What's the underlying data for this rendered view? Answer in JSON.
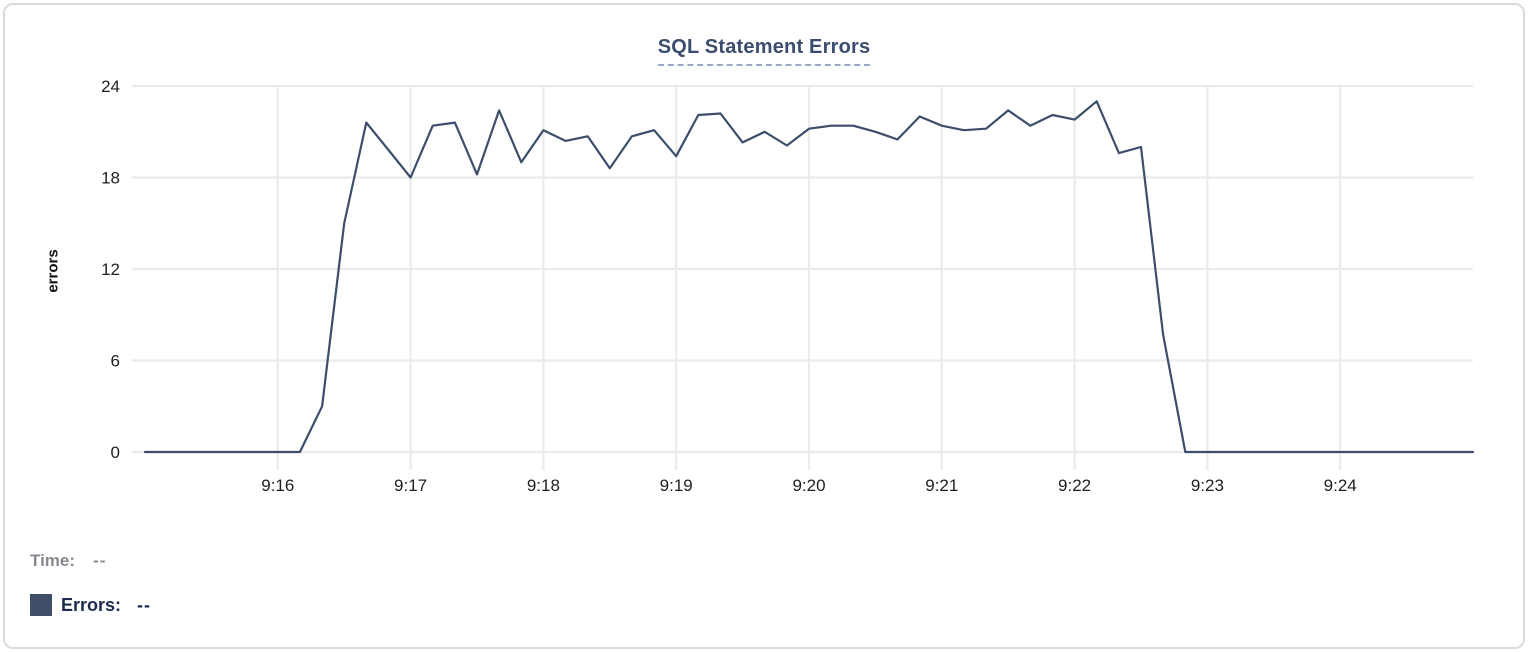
{
  "chart_data": {
    "type": "line",
    "title": "SQL Statement Errors",
    "xlabel": "",
    "ylabel": "errors",
    "ylim": [
      0,
      24
    ],
    "y_ticks": [
      0,
      6,
      12,
      18,
      24
    ],
    "x_ticks": [
      "9:16",
      "9:17",
      "9:18",
      "9:19",
      "9:20",
      "9:21",
      "9:22",
      "9:23",
      "9:24"
    ],
    "x_start_time": "9:15:00",
    "x_end_time": "9:25:00",
    "sample_interval_seconds": 10,
    "grid": true,
    "legend_position": "bottom-left",
    "series": [
      {
        "name": "Errors",
        "color": "#3d4e6c",
        "values": [
          0,
          0,
          0,
          0,
          0,
          0,
          0,
          0,
          3,
          15,
          21.6,
          19.8,
          18,
          21.4,
          21.6,
          18.2,
          22.4,
          19,
          21.1,
          20.4,
          20.7,
          18.6,
          20.7,
          21.1,
          19.4,
          22.1,
          22.2,
          20.3,
          21,
          20.1,
          21.2,
          21.4,
          21.4,
          21,
          20.5,
          22,
          21.4,
          21.1,
          21.2,
          22.4,
          21.4,
          22.1,
          21.8,
          23,
          19.6,
          20,
          7.7,
          0,
          0,
          0,
          0,
          0,
          0,
          0,
          0,
          0,
          0,
          0,
          0,
          0,
          0
        ]
      }
    ]
  },
  "readout": {
    "time_label": "Time:",
    "time_value": "--",
    "errors_label": "Errors:",
    "errors_value": "--"
  },
  "colors": {
    "line": "#3d4e6c",
    "grid": "#ebebeb",
    "tick_text": "#1f1f1f",
    "title": "#3b4d6e",
    "title_underline": "#9aa8c2",
    "time_label": "#85898f",
    "errors_label": "#1b2a4e",
    "legend_swatch": "#3f4e68",
    "card_border": "#dbdbdb"
  }
}
